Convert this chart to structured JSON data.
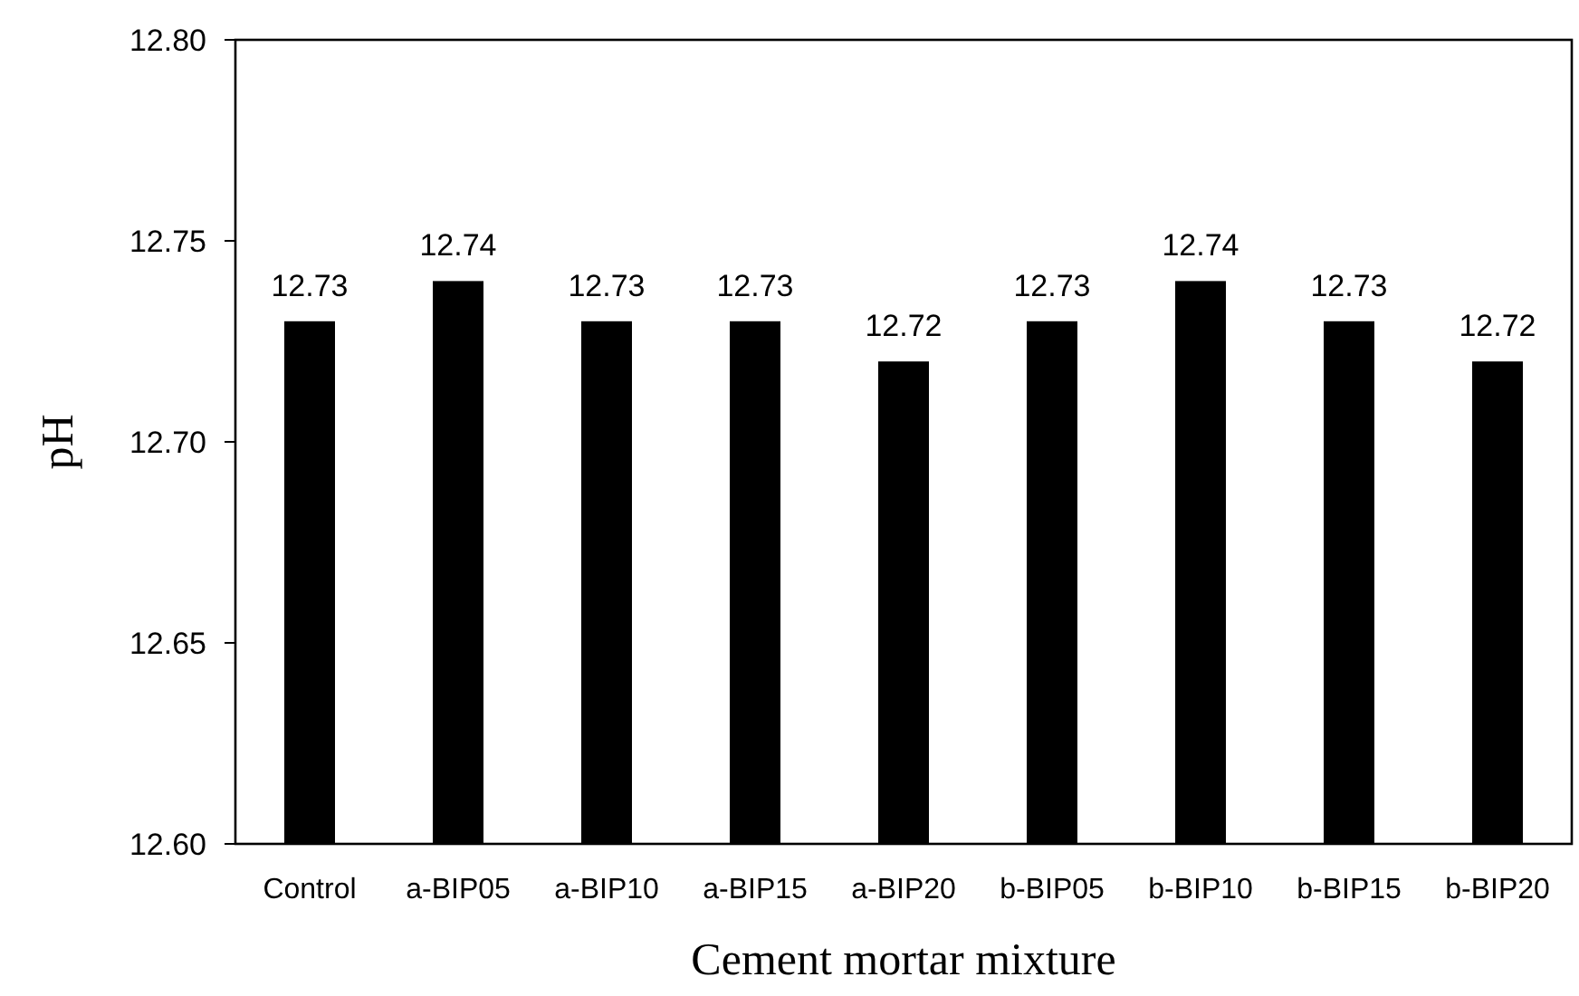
{
  "chart_data": {
    "type": "bar",
    "xlabel": "Cement mortar mixture",
    "ylabel": "pH",
    "categories": [
      "Control",
      "a-BIP05",
      "a-BIP10",
      "a-BIP15",
      "a-BIP20",
      "b-BIP05",
      "b-BIP10",
      "b-BIP15",
      "b-BIP20"
    ],
    "values": [
      12.73,
      12.74,
      12.73,
      12.73,
      12.72,
      12.73,
      12.74,
      12.73,
      12.72
    ],
    "color": "#000000",
    "ylim": [
      12.6,
      12.8
    ],
    "yticks": [
      {
        "value": 12.6,
        "label": "12.60"
      },
      {
        "value": 12.65,
        "label": "12.65"
      },
      {
        "value": 12.7,
        "label": "12.70"
      },
      {
        "value": 12.75,
        "label": "12.75"
      },
      {
        "value": 12.8,
        "label": "12.80"
      }
    ],
    "data_labels": true,
    "grid": false
  }
}
